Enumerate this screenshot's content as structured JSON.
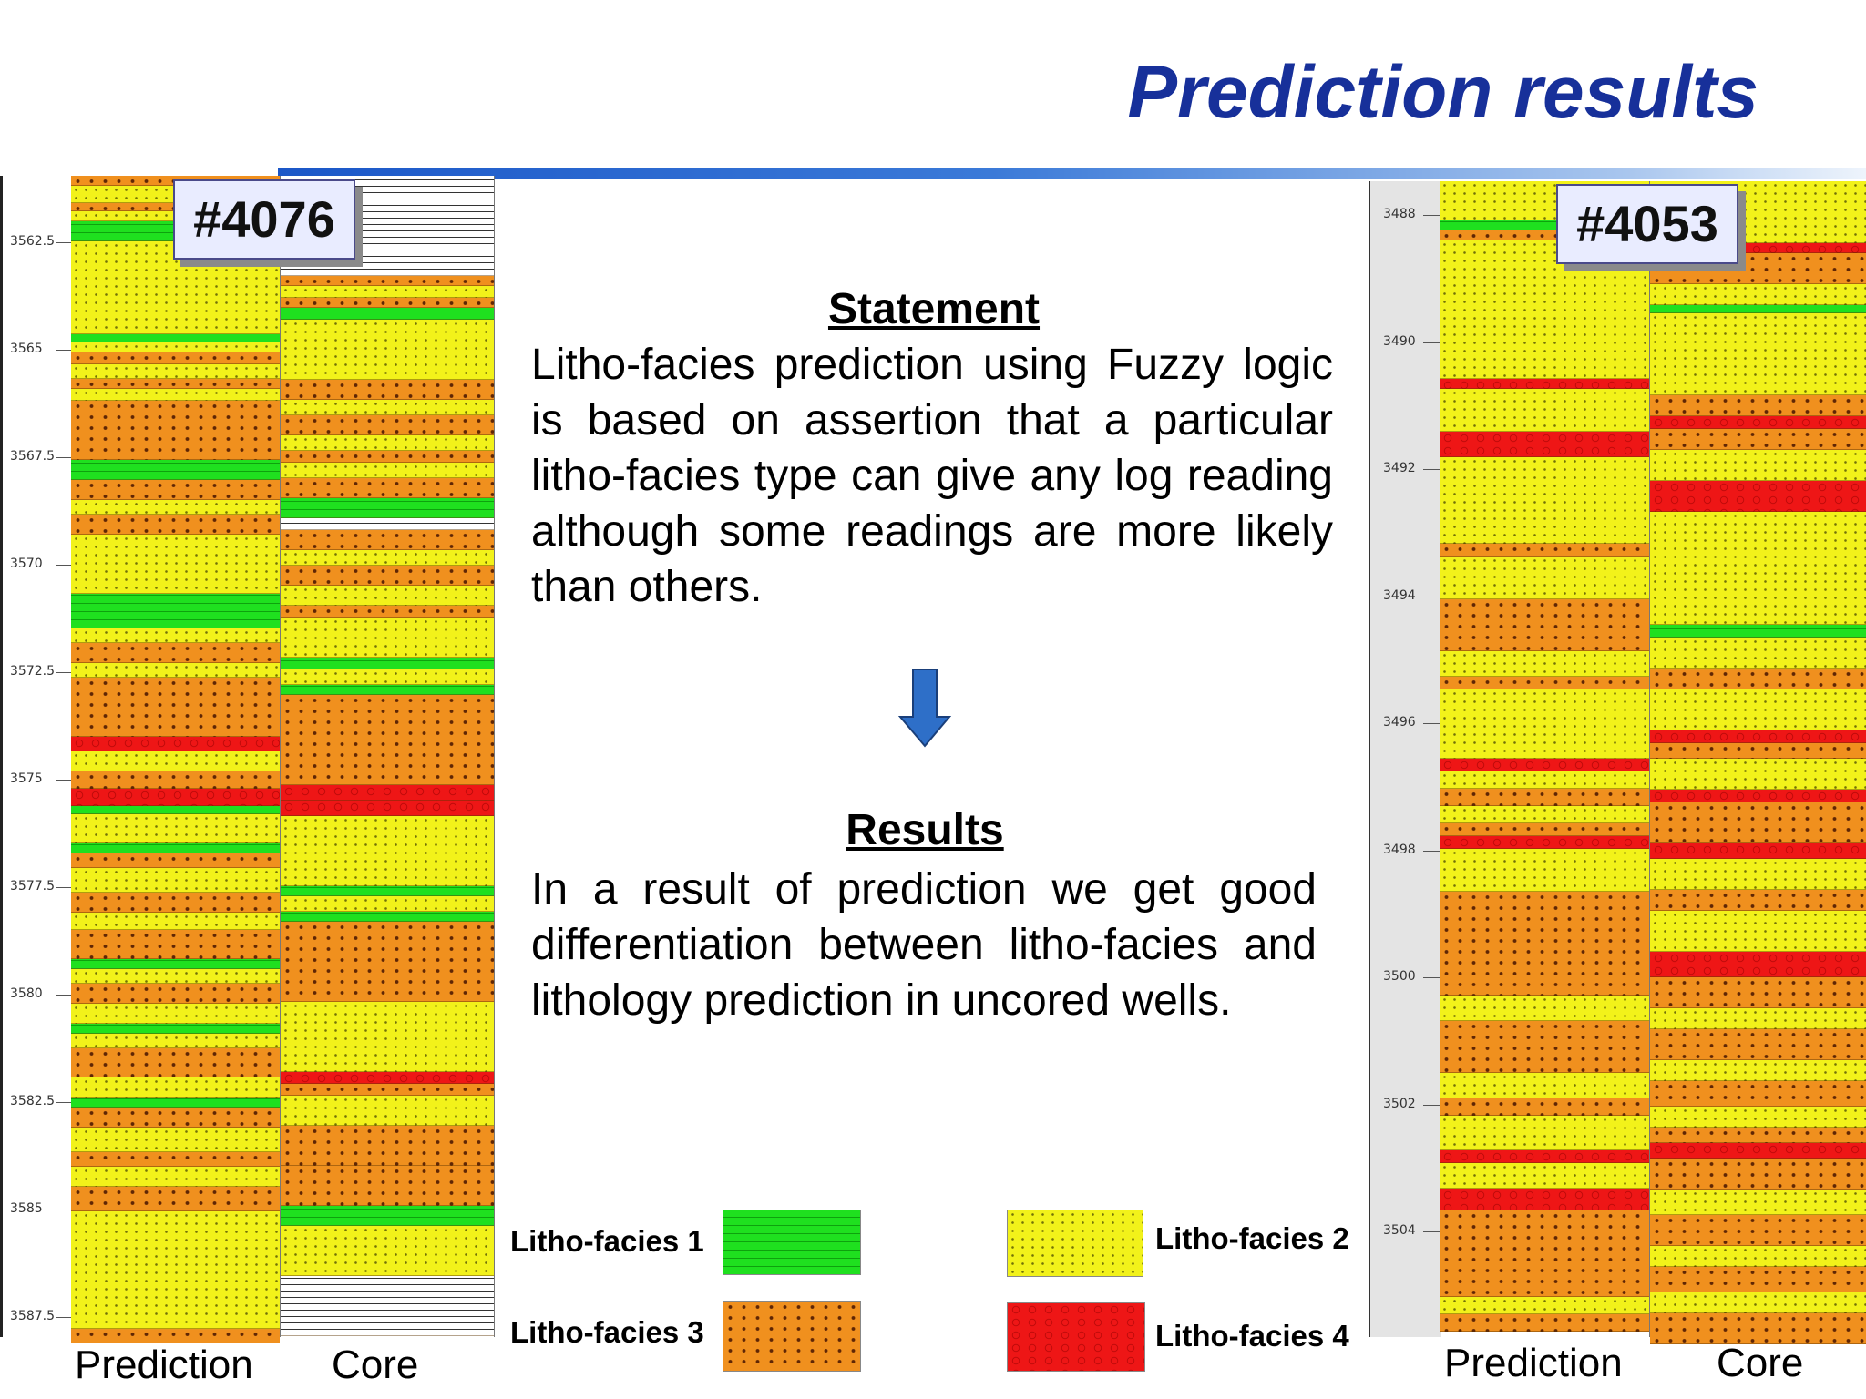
{
  "title": "Prediction results",
  "colors": {
    "title": "#17309a",
    "facies1": "#1fe01f",
    "facies2": "#f2f21a",
    "facies3": "#f0901e",
    "facies4": "#ee1616"
  },
  "left_well": {
    "badge": "#4076",
    "depth_ticks": [
      "3562.5",
      "3565",
      "3567.5",
      "3570",
      "3572.5",
      "3575",
      "3577.5",
      "3580",
      "3582.5",
      "3585",
      "3587.5"
    ],
    "column_labels": [
      "Prediction",
      "Core"
    ]
  },
  "right_well": {
    "badge": "#4053",
    "depth_ticks": [
      "3488",
      "3490",
      "3492",
      "3494",
      "3496",
      "3498",
      "3500",
      "3502",
      "3504"
    ],
    "column_labels": [
      "Prediction",
      "Core"
    ]
  },
  "statement": {
    "heading": "Statement",
    "text": "Litho-facies prediction using Fuzzy logic is based on assertion that a particular litho-facies type can give any log reading although some readings are more likely than others."
  },
  "arrow_icon": "down-arrow-icon",
  "results": {
    "heading": "Results",
    "text": "In a result of prediction we get good differentiation between litho-facies and lithology prediction in uncored wells."
  },
  "legend": [
    {
      "label": "Litho-facies 1",
      "facies": 1
    },
    {
      "label": "Litho-facies 2",
      "facies": 2
    },
    {
      "label": "Litho-facies 3",
      "facies": 3
    },
    {
      "label": "Litho-facies 4",
      "facies": 4
    }
  ]
}
